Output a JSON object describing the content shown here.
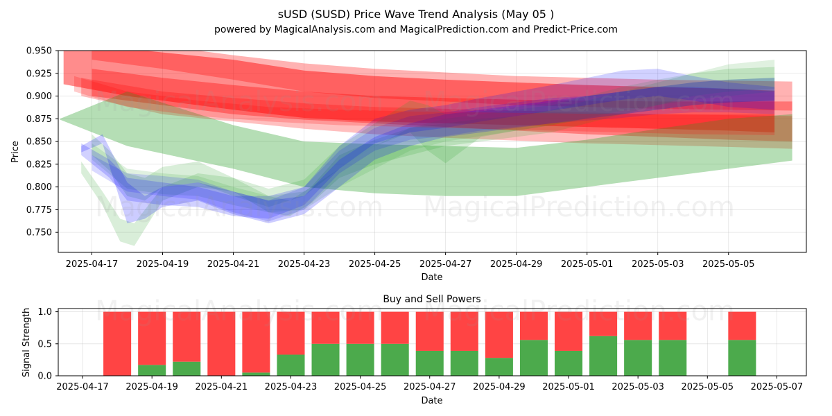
{
  "header": {
    "title": "sUSD (SUSD) Price Wave Trend Analysis (May 05 )",
    "subtitle": "powered by MagicalAnalysis.com and MagicalPrediction.com and Predict-Price.com"
  },
  "watermarks": [
    "MagicalAnalysis.com",
    "MagicalPrediction.com"
  ],
  "colors": {
    "green": "#2ca02c",
    "red": "#ff0000",
    "blue": "#0000ff",
    "bar_green": "#4caa4c",
    "bar_red": "#ff4444"
  },
  "chart_data": [
    {
      "type": "area",
      "title": "",
      "xlabel": "Date",
      "ylabel": "Price",
      "ylim": [
        0.728,
        0.95
      ],
      "xlim": [
        -0.95,
        20.2
      ],
      "yticks": [
        0.75,
        0.775,
        0.8,
        0.825,
        0.85,
        0.875,
        0.9,
        0.925,
        0.95
      ],
      "ytick_labels": [
        "0.750",
        "0.775",
        "0.800",
        "0.825",
        "0.850",
        "0.875",
        "0.900",
        "0.925",
        "0.950"
      ],
      "xticks": [
        0,
        2,
        4,
        6,
        8,
        10,
        12,
        14,
        16,
        18
      ],
      "xtick_labels": [
        "2025-04-17",
        "2025-04-19",
        "2025-04-21",
        "2025-04-23",
        "2025-04-25",
        "2025-04-27",
        "2025-04-29",
        "2025-05-01",
        "2025-05-03",
        "2025-05-05"
      ],
      "x_origin_date": "2025-04-17",
      "grid": true,
      "bands": [
        {
          "name": "red-1",
          "color": "red",
          "opacity": 0.45,
          "x": [
            -0.8,
            1,
            4,
            6,
            8,
            10,
            12,
            14,
            16,
            18,
            19.3
          ],
          "upper": [
            0.955,
            0.952,
            0.94,
            0.928,
            0.922,
            0.918,
            0.915,
            0.912,
            0.91,
            0.908,
            0.906
          ],
          "lower": [
            0.913,
            0.9,
            0.885,
            0.876,
            0.872,
            0.87,
            0.868,
            0.866,
            0.864,
            0.862,
            0.86
          ]
        },
        {
          "name": "red-2",
          "color": "red",
          "opacity": 0.3,
          "x": [
            0,
            2,
            4,
            6,
            8,
            10,
            12,
            14,
            16,
            18,
            19.8
          ],
          "upper": [
            0.965,
            0.955,
            0.945,
            0.936,
            0.93,
            0.926,
            0.922,
            0.92,
            0.918,
            0.917,
            0.916
          ],
          "lower": [
            0.94,
            0.93,
            0.918,
            0.905,
            0.898,
            0.894,
            0.89,
            0.888,
            0.886,
            0.885,
            0.884
          ]
        },
        {
          "name": "red-3",
          "color": "red",
          "opacity": 0.35,
          "x": [
            0,
            2,
            4,
            6,
            8,
            10,
            12,
            14,
            16,
            18,
            19.8
          ],
          "upper": [
            0.93,
            0.92,
            0.912,
            0.905,
            0.9,
            0.898,
            0.896,
            0.895,
            0.894,
            0.894,
            0.894
          ],
          "lower": [
            0.9,
            0.89,
            0.88,
            0.874,
            0.87,
            0.866,
            0.862,
            0.858,
            0.855,
            0.852,
            0.85
          ]
        },
        {
          "name": "red-4",
          "color": "red",
          "opacity": 0.25,
          "x": [
            -0.3,
            2,
            4,
            6,
            8,
            10,
            12,
            14,
            16,
            18,
            19.8
          ],
          "upper": [
            0.92,
            0.905,
            0.898,
            0.892,
            0.888,
            0.886,
            0.884,
            0.882,
            0.88,
            0.879,
            0.878
          ],
          "lower": [
            0.9,
            0.88,
            0.872,
            0.864,
            0.858,
            0.854,
            0.851,
            0.848,
            0.846,
            0.844,
            0.842
          ]
        },
        {
          "name": "green-wide",
          "color": "green",
          "opacity": 0.35,
          "x": [
            -0.9,
            1,
            4,
            6,
            8,
            10,
            12,
            14,
            16,
            18,
            19.8
          ],
          "upper": [
            0.875,
            0.905,
            0.868,
            0.85,
            0.847,
            0.845,
            0.843,
            0.852,
            0.864,
            0.875,
            0.88
          ],
          "lower": [
            0.874,
            0.845,
            0.82,
            0.8,
            0.793,
            0.79,
            0.79,
            0.8,
            0.81,
            0.82,
            0.829
          ]
        },
        {
          "name": "green-1",
          "color": "green",
          "opacity": 0.18,
          "x": [
            -0.3,
            0.3,
            0.8,
            1.2,
            2,
            3,
            4,
            5,
            5.6,
            6.2,
            7,
            8,
            9,
            10,
            11,
            12,
            13,
            14,
            15,
            16,
            17,
            18,
            19.3
          ],
          "upper": [
            0.828,
            0.795,
            0.765,
            0.76,
            0.8,
            0.815,
            0.81,
            0.79,
            0.785,
            0.8,
            0.835,
            0.852,
            0.865,
            0.87,
            0.875,
            0.878,
            0.885,
            0.895,
            0.905,
            0.915,
            0.925,
            0.93,
            0.932
          ],
          "lower": [
            0.815,
            0.78,
            0.74,
            0.735,
            0.785,
            0.8,
            0.795,
            0.772,
            0.768,
            0.782,
            0.81,
            0.825,
            0.835,
            0.845,
            0.85,
            0.855,
            0.86,
            0.87,
            0.88,
            0.89,
            0.9,
            0.905,
            0.908
          ]
        },
        {
          "name": "green-2",
          "color": "green",
          "opacity": 0.18,
          "x": [
            0,
            0.5,
            1,
            1.5,
            2,
            3,
            4,
            5,
            6,
            7,
            8,
            9,
            9.5,
            10,
            11,
            12,
            13,
            14,
            15,
            16,
            17,
            18,
            19.3
          ],
          "upper": [
            0.858,
            0.84,
            0.815,
            0.81,
            0.822,
            0.828,
            0.81,
            0.798,
            0.808,
            0.845,
            0.87,
            0.895,
            0.89,
            0.88,
            0.883,
            0.888,
            0.893,
            0.9,
            0.905,
            0.91,
            0.915,
            0.918,
            0.92
          ],
          "lower": [
            0.835,
            0.818,
            0.79,
            0.785,
            0.8,
            0.805,
            0.79,
            0.778,
            0.79,
            0.82,
            0.845,
            0.86,
            0.84,
            0.826,
            0.855,
            0.862,
            0.868,
            0.875,
            0.88,
            0.885,
            0.89,
            0.893,
            0.895
          ]
        },
        {
          "name": "green-3",
          "color": "green",
          "opacity": 0.15,
          "x": [
            0,
            1,
            2,
            3,
            4,
            5,
            6,
            7,
            8,
            9,
            10,
            11,
            12,
            13,
            14,
            15,
            16,
            17,
            18,
            19.3
          ],
          "upper": [
            0.848,
            0.82,
            0.815,
            0.812,
            0.8,
            0.79,
            0.795,
            0.82,
            0.845,
            0.865,
            0.875,
            0.88,
            0.885,
            0.89,
            0.9,
            0.91,
            0.918,
            0.925,
            0.935,
            0.94
          ],
          "lower": [
            0.83,
            0.798,
            0.792,
            0.79,
            0.78,
            0.772,
            0.775,
            0.8,
            0.82,
            0.84,
            0.85,
            0.856,
            0.862,
            0.868,
            0.876,
            0.884,
            0.89,
            0.896,
            0.9,
            0.905
          ]
        },
        {
          "name": "blue-1",
          "color": "blue",
          "opacity": 0.2,
          "x": [
            -0.3,
            0.3,
            1,
            1.5,
            2,
            3,
            4,
            5,
            6,
            7,
            8,
            9,
            10,
            11,
            12,
            13,
            14,
            15,
            16,
            17,
            18,
            19.3
          ],
          "upper": [
            0.845,
            0.858,
            0.805,
            0.79,
            0.8,
            0.805,
            0.795,
            0.785,
            0.79,
            0.83,
            0.855,
            0.87,
            0.88,
            0.885,
            0.89,
            0.895,
            0.9,
            0.905,
            0.91,
            0.915,
            0.918,
            0.92
          ],
          "lower": [
            0.838,
            0.848,
            0.76,
            0.765,
            0.778,
            0.785,
            0.77,
            0.76,
            0.77,
            0.8,
            0.83,
            0.845,
            0.855,
            0.86,
            0.865,
            0.87,
            0.875,
            0.88,
            0.885,
            0.89,
            0.893,
            0.895
          ]
        },
        {
          "name": "blue-2",
          "color": "blue",
          "opacity": 0.18,
          "x": [
            -0.3,
            0.5,
            1,
            2,
            3,
            4,
            5,
            6,
            7,
            8,
            9,
            10,
            11,
            12,
            13,
            14,
            15,
            16,
            17,
            18,
            19.3
          ],
          "upper": [
            0.848,
            0.83,
            0.81,
            0.805,
            0.8,
            0.79,
            0.79,
            0.8,
            0.845,
            0.875,
            0.885,
            0.89,
            0.898,
            0.905,
            0.912,
            0.92,
            0.928,
            0.93,
            0.922,
            0.915,
            0.91
          ],
          "lower": [
            0.835,
            0.81,
            0.785,
            0.78,
            0.778,
            0.768,
            0.765,
            0.78,
            0.82,
            0.848,
            0.86,
            0.865,
            0.872,
            0.878,
            0.884,
            0.89,
            0.896,
            0.9,
            0.895,
            0.888,
            0.885
          ]
        },
        {
          "name": "blue-3",
          "color": "blue",
          "opacity": 0.15,
          "x": [
            0,
            1,
            2,
            3,
            4,
            5,
            6,
            7,
            8,
            9,
            10,
            11,
            12,
            13,
            14,
            15,
            16,
            17,
            18,
            19.3
          ],
          "upper": [
            0.835,
            0.815,
            0.812,
            0.808,
            0.795,
            0.785,
            0.8,
            0.84,
            0.865,
            0.878,
            0.882,
            0.888,
            0.893,
            0.898,
            0.9,
            0.905,
            0.91,
            0.91,
            0.908,
            0.905
          ],
          "lower": [
            0.818,
            0.795,
            0.79,
            0.786,
            0.772,
            0.762,
            0.775,
            0.815,
            0.84,
            0.852,
            0.856,
            0.862,
            0.866,
            0.87,
            0.873,
            0.876,
            0.88,
            0.882,
            0.882,
            0.88
          ]
        },
        {
          "name": "red-brown-overlay",
          "color": "red",
          "opacity": 0.2,
          "x": [
            -0.5,
            1,
            3,
            5,
            7,
            9,
            11,
            13,
            15,
            17,
            19.3
          ],
          "upper": [
            0.922,
            0.905,
            0.895,
            0.888,
            0.885,
            0.883,
            0.882,
            0.881,
            0.88,
            0.88,
            0.88
          ],
          "lower": [
            0.905,
            0.888,
            0.878,
            0.872,
            0.868,
            0.866,
            0.864,
            0.862,
            0.86,
            0.858,
            0.857
          ]
        }
      ]
    },
    {
      "type": "bar",
      "title": "Buy and Sell Powers",
      "xlabel": "Date",
      "ylabel": "Signal Strength",
      "ylim": [
        0,
        1.05
      ],
      "xlim": [
        -0.7,
        20.85
      ],
      "yticks": [
        0.0,
        0.5,
        1.0
      ],
      "ytick_labels": [
        "0.0",
        "0.5",
        "1.0"
      ],
      "xticks": [
        0,
        2,
        4,
        6,
        8,
        10,
        12,
        14,
        16,
        18,
        20
      ],
      "xtick_labels": [
        "2025-04-17",
        "2025-04-19",
        "2025-04-21",
        "2025-04-23",
        "2025-04-25",
        "2025-04-27",
        "2025-04-29",
        "2025-05-01",
        "2025-05-03",
        "2025-05-05",
        "2025-05-07"
      ],
      "grid": true,
      "x_origin_date": "2025-04-17",
      "x": [
        1,
        2,
        3,
        4,
        5,
        6,
        7,
        8,
        9,
        10,
        11,
        12,
        13,
        14,
        15,
        16,
        17,
        19
      ],
      "series": [
        {
          "name": "Buy",
          "color": "bar_green",
          "values": [
            0.0,
            0.17,
            0.22,
            0.0,
            0.05,
            0.33,
            0.5,
            0.5,
            0.5,
            0.39,
            0.39,
            0.28,
            0.56,
            0.39,
            0.62,
            0.56,
            0.56,
            0.56
          ]
        },
        {
          "name": "Sell",
          "color": "bar_red",
          "values": [
            1.0,
            0.83,
            0.78,
            1.0,
            0.95,
            0.67,
            0.5,
            0.5,
            0.5,
            0.61,
            0.61,
            0.72,
            0.44,
            0.61,
            0.38,
            0.44,
            0.44,
            0.44
          ]
        }
      ]
    }
  ]
}
